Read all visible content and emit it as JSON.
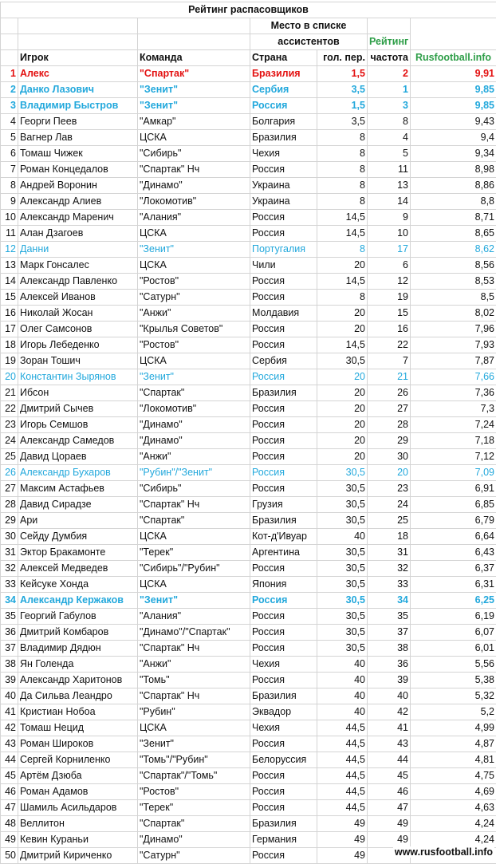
{
  "title": "Рейтинг распасовщиков",
  "header": {
    "group": [
      "Место в списке",
      "ассистентов"
    ],
    "rating_title": "Рейтинг",
    "rating_source": "Rusfootball.info",
    "columns": [
      "Игрок",
      "Команда",
      "Страна",
      "гол. пер.",
      "частота"
    ]
  },
  "colors": {
    "red": "#e31010",
    "blue": "#22a8dc",
    "green": "#2e9e48"
  },
  "rows": [
    [
      "1",
      "Алекс",
      "\"Спартак\"",
      "Бразилия",
      "1,5",
      "2",
      "9,91",
      "red-bold"
    ],
    [
      "2",
      "Данко Лазович",
      "\"Зенит\"",
      "Сербия",
      "3,5",
      "1",
      "9,85",
      "blue-bold"
    ],
    [
      "3",
      "Владимир Быстров",
      "\"Зенит\"",
      "Россия",
      "1,5",
      "3",
      "9,85",
      "blue-bold"
    ],
    [
      "4",
      "Георги Пеев",
      "\"Амкар\"",
      "Болгария",
      "3,5",
      "8",
      "9,43",
      ""
    ],
    [
      "5",
      "Вагнер Лав",
      "ЦСКА",
      "Бразилия",
      "8",
      "4",
      "9,4",
      ""
    ],
    [
      "6",
      "Томаш Чижек",
      "\"Сибирь\"",
      "Чехия",
      "8",
      "5",
      "9,34",
      ""
    ],
    [
      "7",
      "Роман Концедалов",
      "\"Спартак\" Нч",
      "Россия",
      "8",
      "11",
      "8,98",
      ""
    ],
    [
      "8",
      "Андрей Воронин",
      "\"Динамо\"",
      "Украина",
      "8",
      "13",
      "8,86",
      ""
    ],
    [
      "9",
      "Александр Алиев",
      "\"Локомотив\"",
      "Украина",
      "8",
      "14",
      "8,8",
      ""
    ],
    [
      "10",
      "Александр Маренич",
      "\"Алания\"",
      "Россия",
      "14,5",
      "9",
      "8,71",
      ""
    ],
    [
      "11",
      "Алан Дзагоев",
      "ЦСКА",
      "Россия",
      "14,5",
      "10",
      "8,65",
      ""
    ],
    [
      "12",
      "Данни",
      "\"Зенит\"",
      "Португалия",
      "8",
      "17",
      "8,62",
      "blue"
    ],
    [
      "13",
      "Марк Гонсалес",
      "ЦСКА",
      "Чили",
      "20",
      "6",
      "8,56",
      ""
    ],
    [
      "14",
      "Александр Павленко",
      "\"Ростов\"",
      "Россия",
      "14,5",
      "12",
      "8,53",
      ""
    ],
    [
      "15",
      "Алексей Иванов",
      "\"Сатурн\"",
      "Россия",
      "8",
      "19",
      "8,5",
      ""
    ],
    [
      "16",
      "Николай Жосан",
      "\"Анжи\"",
      "Молдавия",
      "20",
      "15",
      "8,02",
      ""
    ],
    [
      "17",
      "Олег Самсонов",
      "\"Крылья Советов\"",
      "Россия",
      "20",
      "16",
      "7,96",
      ""
    ],
    [
      "18",
      "Игорь Лебеденко",
      "\"Ростов\"",
      "Россия",
      "14,5",
      "22",
      "7,93",
      ""
    ],
    [
      "19",
      "Зоран Тошич",
      "ЦСКА",
      "Сербия",
      "30,5",
      "7",
      "7,87",
      ""
    ],
    [
      "20",
      "Константин Зырянов",
      "\"Зенит\"",
      "Россия",
      "20",
      "21",
      "7,66",
      "blue"
    ],
    [
      "21",
      "Ибсон",
      "\"Спартак\"",
      "Бразилия",
      "20",
      "26",
      "7,36",
      ""
    ],
    [
      "22",
      "Дмитрий Сычев",
      "\"Локомотив\"",
      "Россия",
      "20",
      "27",
      "7,3",
      ""
    ],
    [
      "23",
      "Игорь Семшов",
      "\"Динамо\"",
      "Россия",
      "20",
      "28",
      "7,24",
      ""
    ],
    [
      "24",
      "Александр Самедов",
      "\"Динамо\"",
      "Россия",
      "20",
      "29",
      "7,18",
      ""
    ],
    [
      "25",
      "Давид Цораев",
      "\"Анжи\"",
      "Россия",
      "20",
      "30",
      "7,12",
      ""
    ],
    [
      "26",
      "Александр Бухаров",
      "\"Рубин\"/\"Зенит\"",
      "Россия",
      "30,5",
      "20",
      "7,09",
      "blue"
    ],
    [
      "27",
      "Максим Астафьев",
      "\"Сибирь\"",
      "Россия",
      "30,5",
      "23",
      "6,91",
      ""
    ],
    [
      "28",
      "Давид Сирадзе",
      "\"Спартак\" Нч",
      "Грузия",
      "30,5",
      "24",
      "6,85",
      ""
    ],
    [
      "29",
      "Ари",
      "\"Спартак\"",
      "Бразилия",
      "30,5",
      "25",
      "6,79",
      ""
    ],
    [
      "30",
      "Сейду Думбия",
      "ЦСКА",
      "Кот-д'Ивуар",
      "40",
      "18",
      "6,64",
      ""
    ],
    [
      "31",
      "Эктор Бракамонте",
      "\"Терек\"",
      "Аргентина",
      "30,5",
      "31",
      "6,43",
      ""
    ],
    [
      "32",
      "Алексей Медведев",
      "\"Сибирь\"/\"Рубин\"",
      "Россия",
      "30,5",
      "32",
      "6,37",
      ""
    ],
    [
      "33",
      "Кейсуке Хонда",
      "ЦСКА",
      "Япония",
      "30,5",
      "33",
      "6,31",
      ""
    ],
    [
      "34",
      "Александр Кержаков",
      "\"Зенит\"",
      "Россия",
      "30,5",
      "34",
      "6,25",
      "blue-bold"
    ],
    [
      "35",
      "Георгий Габулов",
      "\"Алания\"",
      "Россия",
      "30,5",
      "35",
      "6,19",
      ""
    ],
    [
      "36",
      "Дмитрий Комбаров",
      "\"Динамо\"/\"Спартак\"",
      "Россия",
      "30,5",
      "37",
      "6,07",
      ""
    ],
    [
      "37",
      "Владимир Дядюн",
      "\"Спартак\" Нч",
      "Россия",
      "30,5",
      "38",
      "6,01",
      ""
    ],
    [
      "38",
      "Ян Голенда",
      "\"Анжи\"",
      "Чехия",
      "40",
      "36",
      "5,56",
      ""
    ],
    [
      "39",
      "Александр Харитонов",
      "\"Томь\"",
      "Россия",
      "40",
      "39",
      "5,38",
      ""
    ],
    [
      "40",
      "Да Сильва Леандро",
      "\"Спартак\" Нч",
      "Бразилия",
      "40",
      "40",
      "5,32",
      ""
    ],
    [
      "41",
      "Кристиан Нобоа",
      "\"Рубин\"",
      "Эквадор",
      "40",
      "42",
      "5,2",
      ""
    ],
    [
      "42",
      "Томаш Нецид",
      "ЦСКА",
      "Чехия",
      "44,5",
      "41",
      "4,99",
      ""
    ],
    [
      "43",
      "Роман Широков",
      "\"Зенит\"",
      "Россия",
      "44,5",
      "43",
      "4,87",
      ""
    ],
    [
      "44",
      "Сергей Корниленко",
      "\"Томь\"/\"Рубин\"",
      "Белоруссия",
      "44,5",
      "44",
      "4,81",
      ""
    ],
    [
      "45",
      "Артём Дзюба",
      "\"Спартак\"/\"Томь\"",
      "Россия",
      "44,5",
      "45",
      "4,75",
      ""
    ],
    [
      "46",
      "Роман Адамов",
      "\"Ростов\"",
      "Россия",
      "44,5",
      "46",
      "4,69",
      ""
    ],
    [
      "47",
      "Шамиль Асильдаров",
      "\"Терек\"",
      "Россия",
      "44,5",
      "47",
      "4,63",
      ""
    ],
    [
      "48",
      "Веллитон",
      "\"Спартак\"",
      "Бразилия",
      "49",
      "49",
      "4,24",
      ""
    ],
    [
      "49",
      "Кевин Кураньи",
      "\"Динамо\"",
      "Германия",
      "49",
      "49",
      "4,24",
      ""
    ],
    [
      "50",
      "Дмитрий Кириченко",
      "\"Сатурн\"",
      "Россия",
      "49",
      "",
      "",
      ""
    ]
  ],
  "watermark": "www.rusfootball.info"
}
